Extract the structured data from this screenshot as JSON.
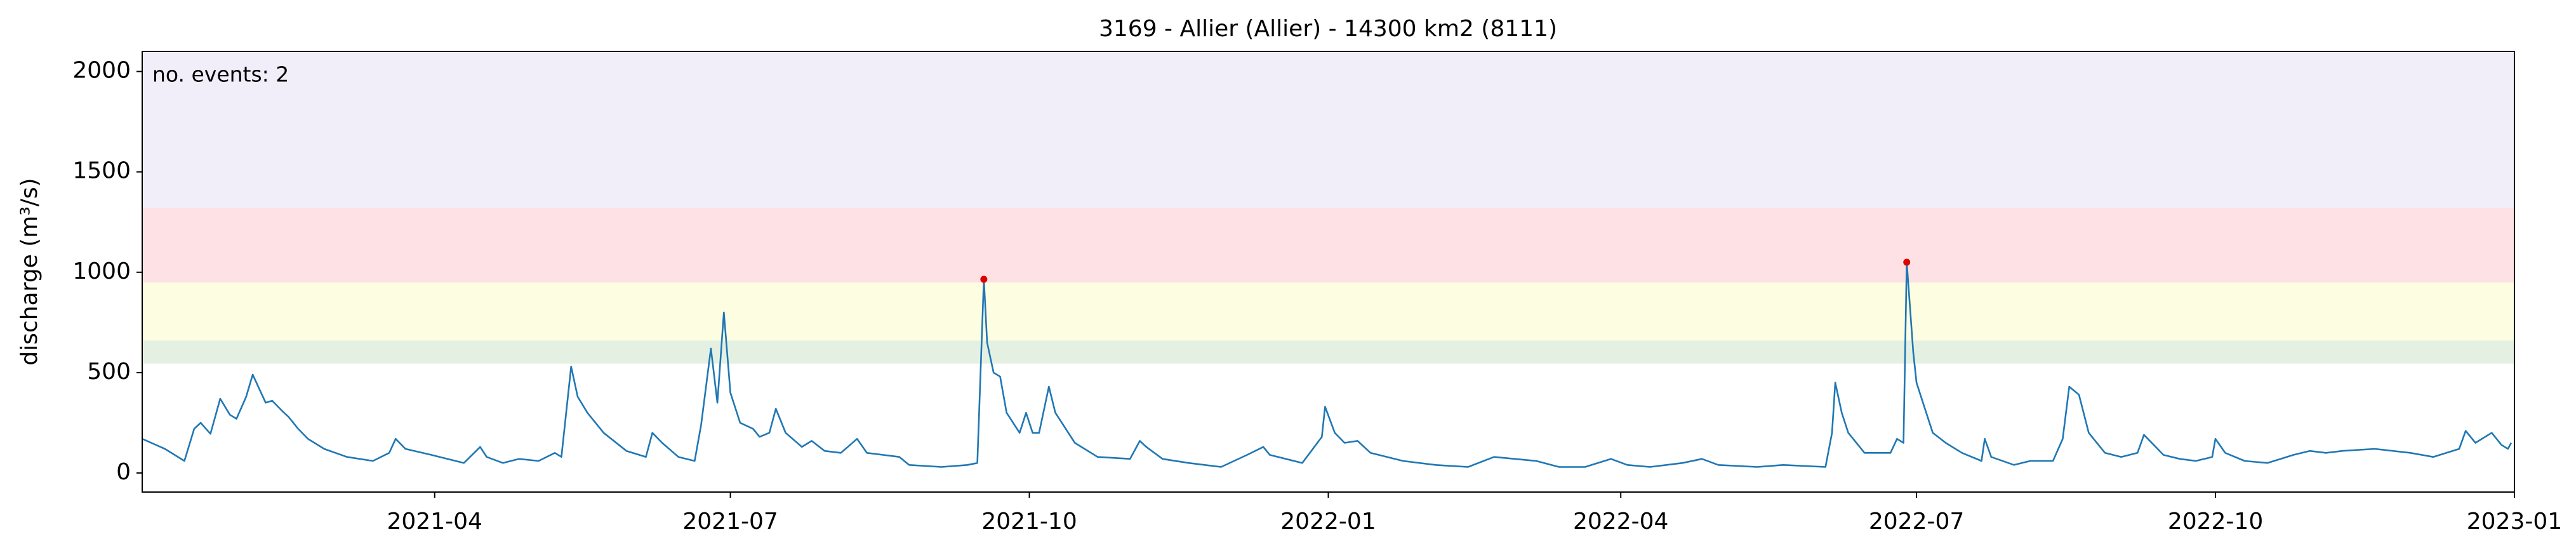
{
  "chart_data": {
    "type": "line",
    "title": "3169 - Allier (Allier) - 14300 km2 (8111)",
    "ylabel": "discharge (m³/s)",
    "annotation": "no. events: 2",
    "annotation_color": "#e00000",
    "xlim": [
      "2021-01",
      "2023-01"
    ],
    "xticks": [
      "2021-04",
      "2021-07",
      "2021-10",
      "2022-01",
      "2022-04",
      "2022-07",
      "2022-10",
      "2023-01"
    ],
    "ylim": [
      -95,
      2100
    ],
    "yticks": [
      0,
      500,
      1000,
      1500,
      2000
    ],
    "bands": [
      {
        "range": [
          545,
          660
        ],
        "color": "#e4f1e2"
      },
      {
        "range": [
          660,
          949
        ],
        "color": "#fdfde2"
      },
      {
        "range": [
          949,
          1320
        ],
        "color": "#fde1e4"
      },
      {
        "range": [
          1320,
          2100
        ],
        "color": "#f1eefa"
      }
    ],
    "series": [
      {
        "kind": "line",
        "color": "#1f77b4",
        "x": [
          "2021-01-01",
          "2021-01-08",
          "2021-01-14",
          "2021-01-17",
          "2021-01-19",
          "2021-01-22",
          "2021-01-25",
          "2021-01-28",
          "2021-01-30",
          "2021-02-02",
          "2021-02-04",
          "2021-02-06",
          "2021-02-08",
          "2021-02-10",
          "2021-02-13",
          "2021-02-15",
          "2021-02-18",
          "2021-02-21",
          "2021-02-26",
          "2021-03-05",
          "2021-03-13",
          "2021-03-18",
          "2021-03-20",
          "2021-03-23",
          "2021-03-31",
          "2021-04-10",
          "2021-04-15",
          "2021-04-17",
          "2021-04-22",
          "2021-04-27",
          "2021-05-03",
          "2021-05-08",
          "2021-05-10",
          "2021-05-13",
          "2021-05-15",
          "2021-05-18",
          "2021-05-23",
          "2021-05-30",
          "2021-06-05",
          "2021-06-07",
          "2021-06-10",
          "2021-06-15",
          "2021-06-20",
          "2021-06-22",
          "2021-06-25",
          "2021-06-27",
          "2021-06-29",
          "2021-07-01",
          "2021-07-04",
          "2021-07-08",
          "2021-07-10",
          "2021-07-13",
          "2021-07-15",
          "2021-07-18",
          "2021-07-23",
          "2021-07-26",
          "2021-07-30",
          "2021-08-04",
          "2021-08-09",
          "2021-08-12",
          "2021-08-17",
          "2021-08-22",
          "2021-08-25",
          "2021-09-04",
          "2021-09-12",
          "2021-09-15",
          "2021-09-17",
          "2021-09-18",
          "2021-09-20",
          "2021-09-22",
          "2021-09-24",
          "2021-09-28",
          "2021-09-30",
          "2021-10-02",
          "2021-10-04",
          "2021-10-07",
          "2021-10-09",
          "2021-10-15",
          "2021-10-22",
          "2021-11-01",
          "2021-11-04",
          "2021-11-06",
          "2021-11-11",
          "2021-11-19",
          "2021-11-29",
          "2021-12-07",
          "2021-12-12",
          "2021-12-14",
          "2021-12-24",
          "2021-12-30",
          "2021-12-31",
          "2022-01-03",
          "2022-01-06",
          "2022-01-10",
          "2022-01-14",
          "2022-01-24",
          "2022-02-03",
          "2022-02-13",
          "2022-02-21",
          "2022-03-06",
          "2022-03-13",
          "2022-03-21",
          "2022-03-29",
          "2022-04-03",
          "2022-04-10",
          "2022-04-20",
          "2022-04-26",
          "2022-05-01",
          "2022-05-13",
          "2022-05-21",
          "2022-06-03",
          "2022-06-05",
          "2022-06-06",
          "2022-06-08",
          "2022-06-10",
          "2022-06-15",
          "2022-06-23",
          "2022-06-25",
          "2022-06-27",
          "2022-06-28",
          "2022-06-30",
          "2022-07-01",
          "2022-07-03",
          "2022-07-06",
          "2022-07-10",
          "2022-07-15",
          "2022-07-21",
          "2022-07-22",
          "2022-07-24",
          "2022-07-31",
          "2022-08-05",
          "2022-08-12",
          "2022-08-15",
          "2022-08-17",
          "2022-08-20",
          "2022-08-23",
          "2022-08-28",
          "2022-09-02",
          "2022-09-07",
          "2022-09-09",
          "2022-09-12",
          "2022-09-15",
          "2022-09-20",
          "2022-09-25",
          "2022-09-30",
          "2022-10-01",
          "2022-10-04",
          "2022-10-10",
          "2022-10-17",
          "2022-10-25",
          "2022-10-30",
          "2022-11-04",
          "2022-11-09",
          "2022-11-19",
          "2022-11-30",
          "2022-12-07",
          "2022-12-15",
          "2022-12-17",
          "2022-12-20",
          "2022-12-25",
          "2022-12-28",
          "2022-12-30",
          "2022-12-31"
        ],
        "values": [
          170,
          120,
          60,
          220,
          250,
          195,
          370,
          290,
          270,
          380,
          490,
          420,
          350,
          360,
          310,
          280,
          220,
          170,
          120,
          80,
          60,
          100,
          170,
          120,
          90,
          50,
          130,
          80,
          50,
          70,
          60,
          100,
          80,
          530,
          380,
          300,
          200,
          110,
          80,
          200,
          150,
          80,
          60,
          240,
          620,
          350,
          800,
          400,
          250,
          220,
          180,
          200,
          320,
          200,
          130,
          160,
          110,
          100,
          170,
          100,
          90,
          80,
          40,
          30,
          40,
          50,
          965,
          650,
          500,
          480,
          300,
          200,
          300,
          200,
          200,
          430,
          300,
          150,
          80,
          70,
          160,
          130,
          70,
          50,
          30,
          90,
          130,
          90,
          50,
          180,
          330,
          200,
          150,
          160,
          100,
          60,
          40,
          30,
          80,
          60,
          30,
          30,
          70,
          40,
          30,
          50,
          70,
          40,
          30,
          40,
          30,
          200,
          450,
          300,
          200,
          100,
          100,
          170,
          150,
          1050,
          600,
          450,
          350,
          200,
          150,
          100,
          60,
          170,
          80,
          40,
          60,
          60,
          170,
          430,
          390,
          200,
          100,
          80,
          100,
          190,
          140,
          90,
          70,
          60,
          80,
          170,
          100,
          60,
          50,
          90,
          110,
          100,
          110,
          120,
          100,
          80,
          120,
          210,
          150,
          200,
          140,
          120,
          150
        ]
      },
      {
        "kind": "points",
        "color": "#e00000",
        "x": [
          "2021-09-17",
          "2022-06-28"
        ],
        "values": [
          965,
          1050
        ]
      }
    ]
  }
}
